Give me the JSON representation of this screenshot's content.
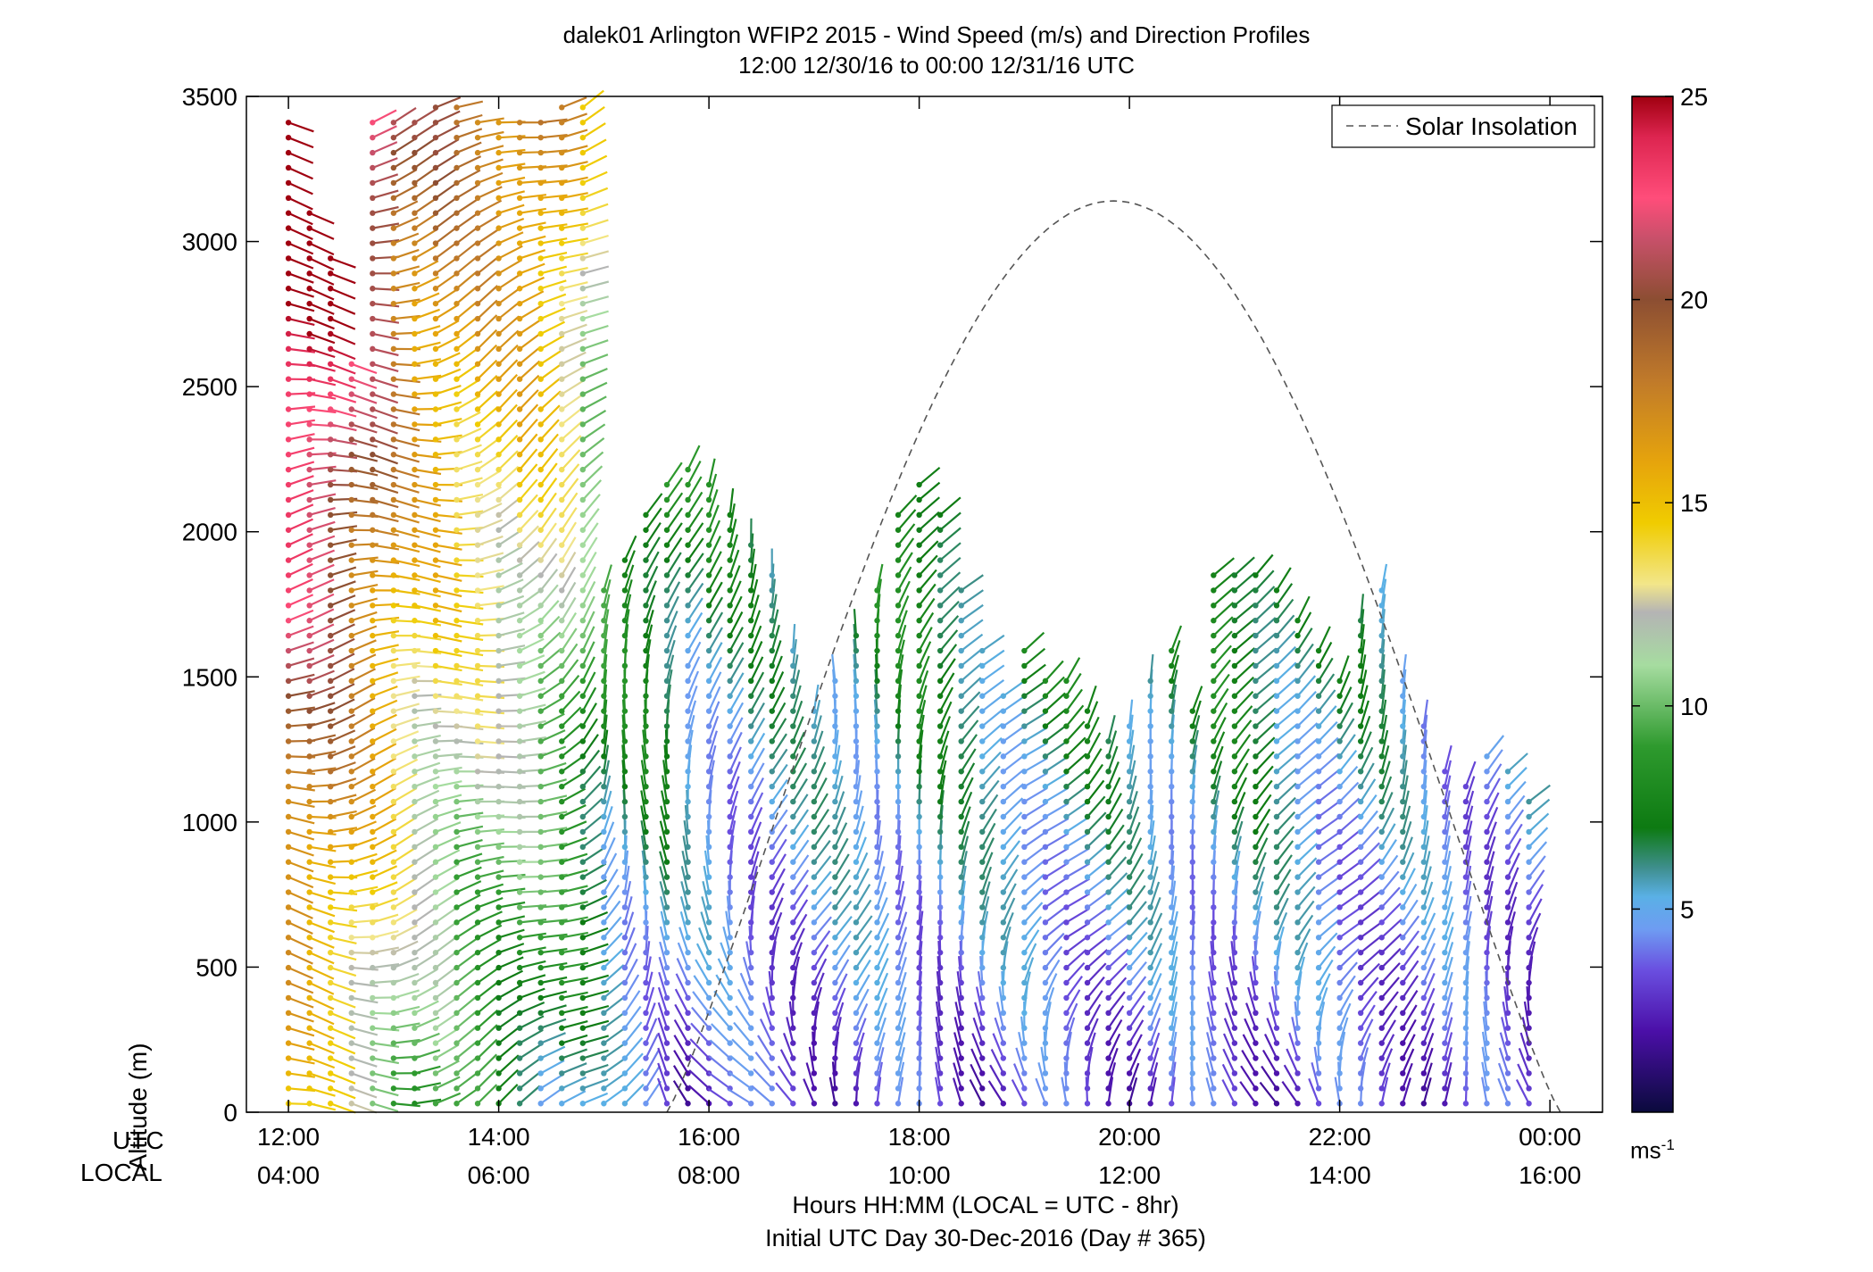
{
  "chart_data": {
    "type": "wind-barb-profile",
    "title": "dalek01 Arlington WFIP2 2015 - Wind Speed (m/s) and Direction Profiles",
    "subtitle": "12:00 12/30/16 to 00:00 12/31/16  UTC",
    "ylabel": "Altitude (m)",
    "xlabel": "Hours HH:MM  (LOCAL = UTC - 8hr)",
    "xlabel2": "Initial UTC Day 30-Dec-2016 (Day # 365)",
    "row_labels": {
      "utc": "UTC",
      "local": "LOCAL"
    },
    "ylim": [
      0,
      3500
    ],
    "xlim_hours": [
      11.6,
      24.5
    ],
    "y_ticks": [
      0,
      500,
      1000,
      1500,
      2000,
      2500,
      3000,
      3500
    ],
    "x_ticks": [
      {
        "hour": 12,
        "utc": "12:00",
        "local": "04:00"
      },
      {
        "hour": 14,
        "utc": "14:00",
        "local": "06:00"
      },
      {
        "hour": 16,
        "utc": "16:00",
        "local": "08:00"
      },
      {
        "hour": 18,
        "utc": "18:00",
        "local": "10:00"
      },
      {
        "hour": 20,
        "utc": "20:00",
        "local": "12:00"
      },
      {
        "hour": 22,
        "utc": "22:00",
        "local": "14:00"
      },
      {
        "hour": 24,
        "utc": "00:00",
        "local": "16:00"
      }
    ],
    "legend": {
      "entries": [
        "Solar Insolation"
      ],
      "placement": "top-right",
      "line_style": "dashed"
    },
    "solar_insolation": {
      "rise_hour": 15.6,
      "set_hour": 24.1,
      "peak_hour": 19.85,
      "peak_altitude_equiv": 3140
    },
    "colorbar": {
      "min": 0,
      "max": 25,
      "ticks": [
        5,
        10,
        15,
        20,
        25
      ],
      "unit_label": "ms",
      "unit_exponent": "-1",
      "stops": [
        {
          "v": 0,
          "c": "#0a0a3c"
        },
        {
          "v": 2,
          "c": "#4b0fa8"
        },
        {
          "v": 3.5,
          "c": "#6a4fe0"
        },
        {
          "v": 4.5,
          "c": "#6e9cf2"
        },
        {
          "v": 5.3,
          "c": "#5ab0e6"
        },
        {
          "v": 6,
          "c": "#3f8f8f"
        },
        {
          "v": 7,
          "c": "#0d7a12"
        },
        {
          "v": 9,
          "c": "#2e9a2e"
        },
        {
          "v": 11,
          "c": "#a6dca0"
        },
        {
          "v": 12.3,
          "c": "#b4b4b4"
        },
        {
          "v": 13,
          "c": "#f2e68a"
        },
        {
          "v": 14.5,
          "c": "#f0cc00"
        },
        {
          "v": 16,
          "c": "#e6a40c"
        },
        {
          "v": 18,
          "c": "#c07a2a"
        },
        {
          "v": 20,
          "c": "#8c4e32"
        },
        {
          "v": 21.5,
          "c": "#c8506a"
        },
        {
          "v": 22.5,
          "c": "#ff4d7a"
        },
        {
          "v": 24,
          "c": "#dd2550"
        },
        {
          "v": 25,
          "c": "#a00010"
        }
      ]
    },
    "profiles": [
      {
        "hour": 12.0,
        "top": 3420,
        "base_speed": 14,
        "slope": 4.2,
        "dir": 270
      },
      {
        "hour": 12.2,
        "top": 3100,
        "base_speed": 13,
        "slope": 4.5,
        "dir": 270
      },
      {
        "hour": 12.4,
        "top": 2950,
        "base_speed": 13,
        "slope": 4.0,
        "dir": 268
      },
      {
        "hour": 12.6,
        "top": 2600,
        "base_speed": 12,
        "slope": 3.5,
        "dir": 265
      },
      {
        "hour": 12.8,
        "top": 3450,
        "base_speed": 11,
        "slope": 3.5,
        "dir": 265
      },
      {
        "hour": 13.0,
        "top": 3430,
        "base_speed": 10,
        "slope": 3.0,
        "dir": 262
      },
      {
        "hour": 13.2,
        "top": 3450,
        "base_speed": 9,
        "slope": 3.0,
        "dir": 260
      },
      {
        "hour": 13.4,
        "top": 3470,
        "base_speed": 9,
        "slope": 3.0,
        "dir": 258
      },
      {
        "hour": 13.6,
        "top": 3470,
        "base_speed": 8,
        "slope": 3.0,
        "dir": 255
      },
      {
        "hour": 13.8,
        "top": 3450,
        "base_speed": 8,
        "slope": 3.0,
        "dir": 250
      },
      {
        "hour": 14.0,
        "top": 3450,
        "base_speed": 7,
        "slope": 3.2,
        "dir": 248
      },
      {
        "hour": 14.2,
        "top": 3450,
        "base_speed": 7,
        "slope": 3.3,
        "dir": 245
      },
      {
        "hour": 14.4,
        "top": 3460,
        "base_speed": 6,
        "slope": 3.4,
        "dir": 240
      },
      {
        "hour": 14.6,
        "top": 3470,
        "base_speed": 6,
        "slope": 3.0,
        "dir": 235
      },
      {
        "hour": 14.8,
        "top": 3470,
        "base_speed": 5,
        "slope": 2.5,
        "dir": 230
      },
      {
        "hour": 15.0,
        "top": 1800,
        "base_speed": 4,
        "slope": 2.5,
        "dir": 210
      },
      {
        "hour": 15.2,
        "top": 1950,
        "base_speed": 4,
        "slope": 2.2,
        "dir": 200
      },
      {
        "hour": 15.4,
        "top": 2100,
        "base_speed": 4,
        "slope": 2.2,
        "dir": 195
      },
      {
        "hour": 15.6,
        "top": 2200,
        "base_speed": 4,
        "slope": 2.0,
        "dir": 190
      },
      {
        "hour": 15.8,
        "top": 2250,
        "base_speed": 3,
        "slope": 2.0,
        "dir": 190
      },
      {
        "hour": 16.0,
        "top": 2200,
        "base_speed": 3,
        "slope": 2.0,
        "dir": 185
      },
      {
        "hour": 16.2,
        "top": 2100,
        "base_speed": 3,
        "slope": 1.8,
        "dir": 185
      },
      {
        "hour": 16.4,
        "top": 2000,
        "base_speed": 3,
        "slope": 1.8,
        "dir": 185
      },
      {
        "hour": 16.6,
        "top": 1900,
        "base_speed": 3,
        "slope": 1.8,
        "dir": 190
      },
      {
        "hour": 16.8,
        "top": 1600,
        "base_speed": 3,
        "slope": 1.8,
        "dir": 190
      },
      {
        "hour": 17.0,
        "top": 1400,
        "base_speed": 3,
        "slope": 2.0,
        "dir": 195
      },
      {
        "hour": 17.2,
        "top": 1500,
        "base_speed": 3,
        "slope": 2.2,
        "dir": 195
      },
      {
        "hour": 17.4,
        "top": 1650,
        "base_speed": 3,
        "slope": 2.3,
        "dir": 200
      },
      {
        "hour": 17.6,
        "top": 1800,
        "base_speed": 3,
        "slope": 2.4,
        "dir": 200
      },
      {
        "hour": 17.8,
        "top": 2100,
        "base_speed": 3,
        "slope": 2.5,
        "dir": 205
      },
      {
        "hour": 18.0,
        "top": 2200,
        "base_speed": 3,
        "slope": 2.6,
        "dir": 205
      },
      {
        "hour": 18.2,
        "top": 2100,
        "base_speed": 3,
        "slope": 2.5,
        "dir": 205
      },
      {
        "hour": 18.4,
        "top": 1800,
        "base_speed": 3,
        "slope": 2.4,
        "dir": 210
      },
      {
        "hour": 18.6,
        "top": 1600,
        "base_speed": 3,
        "slope": 2.4,
        "dir": 210
      },
      {
        "hour": 18.8,
        "top": 1450,
        "base_speed": 3,
        "slope": 2.4,
        "dir": 210
      },
      {
        "hour": 19.0,
        "top": 1600,
        "base_speed": 3,
        "slope": 2.6,
        "dir": 215
      },
      {
        "hour": 19.2,
        "top": 1500,
        "base_speed": 3,
        "slope": 2.6,
        "dir": 215
      },
      {
        "hour": 19.4,
        "top": 1500,
        "base_speed": 3,
        "slope": 2.6,
        "dir": 215
      },
      {
        "hour": 19.6,
        "top": 1400,
        "base_speed": 3,
        "slope": 2.6,
        "dir": 210
      },
      {
        "hour": 19.8,
        "top": 1300,
        "base_speed": 3,
        "slope": 2.5,
        "dir": 210
      },
      {
        "hour": 20.0,
        "top": 1350,
        "base_speed": 3,
        "slope": 2.5,
        "dir": 210
      },
      {
        "hour": 20.2,
        "top": 1500,
        "base_speed": 3,
        "slope": 2.5,
        "dir": 205
      },
      {
        "hour": 20.4,
        "top": 1600,
        "base_speed": 3,
        "slope": 2.5,
        "dir": 205
      },
      {
        "hour": 20.6,
        "top": 1400,
        "base_speed": 3,
        "slope": 2.6,
        "dir": 205
      },
      {
        "hour": 20.8,
        "top": 1900,
        "base_speed": 3,
        "slope": 2.8,
        "dir": 205
      },
      {
        "hour": 21.0,
        "top": 1850,
        "base_speed": 3,
        "slope": 2.8,
        "dir": 205
      },
      {
        "hour": 21.2,
        "top": 1850,
        "base_speed": 3,
        "slope": 2.7,
        "dir": 205
      },
      {
        "hour": 21.4,
        "top": 1800,
        "base_speed": 3,
        "slope": 2.5,
        "dir": 205
      },
      {
        "hour": 21.6,
        "top": 1700,
        "base_speed": 3,
        "slope": 2.4,
        "dir": 205
      },
      {
        "hour": 21.8,
        "top": 1600,
        "base_speed": 3,
        "slope": 2.2,
        "dir": 210
      },
      {
        "hour": 22.0,
        "top": 1500,
        "base_speed": 3,
        "slope": 2.1,
        "dir": 210
      },
      {
        "hour": 22.2,
        "top": 1700,
        "base_speed": 3,
        "slope": 2.0,
        "dir": 210
      },
      {
        "hour": 22.4,
        "top": 1800,
        "base_speed": 3,
        "slope": 2.0,
        "dir": 210
      },
      {
        "hour": 22.6,
        "top": 1500,
        "base_speed": 3,
        "slope": 1.8,
        "dir": 210
      },
      {
        "hour": 22.8,
        "top": 1350,
        "base_speed": 3,
        "slope": 1.6,
        "dir": 210
      },
      {
        "hour": 23.0,
        "top": 1200,
        "base_speed": 3,
        "slope": 1.5,
        "dir": 215
      },
      {
        "hour": 23.2,
        "top": 1150,
        "base_speed": 3,
        "slope": 1.4,
        "dir": 215
      },
      {
        "hour": 23.4,
        "top": 1250,
        "base_speed": 3,
        "slope": 1.4,
        "dir": 215
      },
      {
        "hour": 23.6,
        "top": 1200,
        "base_speed": 3,
        "slope": 1.4,
        "dir": 215
      },
      {
        "hour": 23.8,
        "top": 1100,
        "base_speed": 3,
        "slope": 1.5,
        "dir": 215
      }
    ]
  }
}
